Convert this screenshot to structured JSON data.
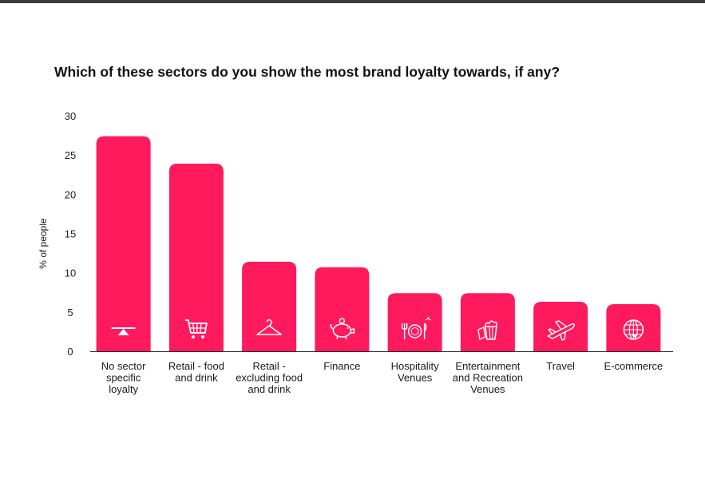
{
  "chart_data": {
    "type": "bar",
    "title": "Which of these sectors do you show the most brand loyalty towards, if any?",
    "xlabel": "",
    "ylabel": "% of people",
    "ylim": [
      0,
      30
    ],
    "yticks": [
      0,
      5,
      10,
      15,
      20,
      25,
      30
    ],
    "grid": false,
    "categories": [
      "No sector specific loyalty",
      "Retail - food and drink",
      "Retail - excluding food and drink",
      "Finance",
      "Hospitality Venues",
      "Entertainment and Recreation Venues",
      "Travel",
      "E-commerce"
    ],
    "values": [
      27.4,
      23.9,
      11.4,
      10.7,
      7.4,
      7.4,
      6.3,
      6.0
    ],
    "icons": [
      "scale-icon",
      "shopping-cart-icon",
      "hanger-icon",
      "piggy-bank-icon",
      "dining-icon",
      "popcorn-icon",
      "airplane-icon",
      "globe-icon"
    ],
    "bar_color": "#ff1a5e",
    "icon_color": "#ffffff"
  }
}
